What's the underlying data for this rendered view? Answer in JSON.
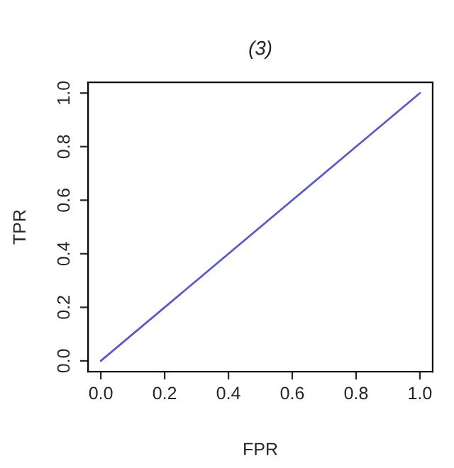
{
  "chart_data": {
    "type": "line",
    "title": "(3)",
    "xlabel": "FPR",
    "ylabel": "TPR",
    "x": [
      0,
      1
    ],
    "series": [
      {
        "color": "#5b5bc8",
        "values": [
          0,
          1
        ]
      }
    ],
    "xlim": [
      -0.04,
      1.04
    ],
    "ylim": [
      -0.04,
      1.04
    ],
    "xticks": [
      {
        "value": 0,
        "label": "0.0"
      },
      {
        "value": 0.2,
        "label": "0.2"
      },
      {
        "value": 0.4,
        "label": "0.4"
      },
      {
        "value": 0.6,
        "label": "0.6"
      },
      {
        "value": 0.8,
        "label": "0.8"
      },
      {
        "value": 1,
        "label": "1.0"
      }
    ],
    "yticks": [
      {
        "value": 0,
        "label": "0.0"
      },
      {
        "value": 0.2,
        "label": "0.2"
      },
      {
        "value": 0.4,
        "label": "0.4"
      },
      {
        "value": 0.6,
        "label": "0.6"
      },
      {
        "value": 0.8,
        "label": "0.8"
      },
      {
        "value": 1,
        "label": "1.0"
      }
    ],
    "grid": false,
    "line_style": "solid"
  }
}
